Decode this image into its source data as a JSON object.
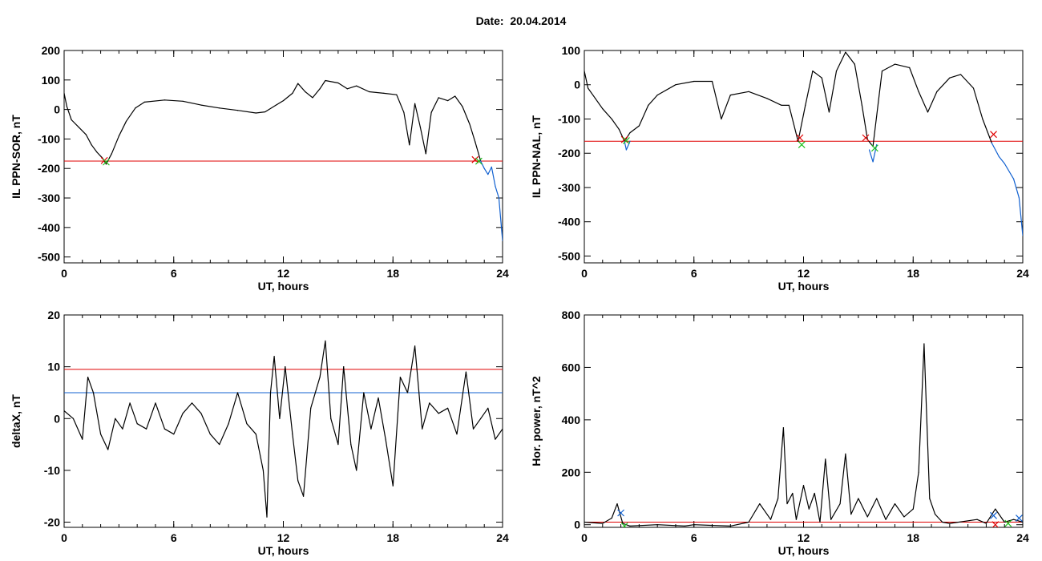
{
  "header": {
    "date_label": "Date:",
    "date_value": "20.04.2014"
  },
  "colors": {
    "trace": "#000000",
    "threshold_red": "#e00000",
    "threshold_blue": "#1060d0",
    "marker_green": "#20c020",
    "marker_red": "#e00000",
    "marker_blue": "#1060d0"
  },
  "chart_data": [
    {
      "id": "il-ppn-sor",
      "type": "line",
      "xlabel": "UT, hours",
      "ylabel": "IL PPN-SOR, nT",
      "xlim": [
        0,
        24
      ],
      "ylim": [
        -520,
        200
      ],
      "xticks": [
        0,
        6,
        12,
        18,
        24
      ],
      "yticks": [
        200,
        100,
        0,
        -100,
        -200,
        -300,
        -400,
        -500
      ],
      "thresholds": [
        {
          "y": -175,
          "color": "red"
        }
      ],
      "series": [
        {
          "color": "black",
          "points": [
            [
              0,
              55
            ],
            [
              0.15,
              10
            ],
            [
              0.4,
              -35
            ],
            [
              0.8,
              -60
            ],
            [
              1.2,
              -85
            ],
            [
              1.5,
              -120
            ],
            [
              1.8,
              -145
            ],
            [
              2.1,
              -165
            ],
            [
              2.3,
              -185
            ],
            [
              2.6,
              -150
            ],
            [
              3.0,
              -90
            ],
            [
              3.4,
              -40
            ],
            [
              3.9,
              5
            ],
            [
              4.4,
              25
            ],
            [
              5.5,
              32
            ],
            [
              6.5,
              28
            ],
            [
              7.5,
              15
            ],
            [
              8.5,
              5
            ],
            [
              9.5,
              -3
            ],
            [
              10.5,
              -12
            ],
            [
              11.0,
              -8
            ],
            [
              11.6,
              15
            ],
            [
              12.0,
              30
            ],
            [
              12.5,
              55
            ],
            [
              12.8,
              88
            ],
            [
              13.2,
              60
            ],
            [
              13.6,
              40
            ],
            [
              14.0,
              70
            ],
            [
              14.3,
              98
            ],
            [
              15.0,
              90
            ],
            [
              15.5,
              70
            ],
            [
              16.0,
              80
            ],
            [
              16.7,
              60
            ],
            [
              17.5,
              55
            ],
            [
              18.2,
              50
            ],
            [
              18.6,
              -10
            ],
            [
              18.9,
              -120
            ],
            [
              19.2,
              20
            ],
            [
              19.5,
              -60
            ],
            [
              19.8,
              -150
            ],
            [
              20.1,
              -10
            ],
            [
              20.5,
              40
            ],
            [
              21.0,
              30
            ],
            [
              21.4,
              45
            ],
            [
              21.8,
              10
            ],
            [
              22.2,
              -50
            ],
            [
              22.5,
              -110
            ],
            [
              22.8,
              -175
            ]
          ]
        },
        {
          "color": "blue",
          "points": [
            [
              22.8,
              -175
            ],
            [
              23.0,
              -200
            ],
            [
              23.2,
              -220
            ],
            [
              23.4,
              -195
            ],
            [
              23.6,
              -260
            ],
            [
              23.8,
              -300
            ],
            [
              24.0,
              -445
            ]
          ]
        }
      ],
      "markers": [
        {
          "x": 2.2,
          "y": -173,
          "color": "red"
        },
        {
          "x": 2.3,
          "y": -178,
          "color": "green"
        },
        {
          "x": 22.5,
          "y": -170,
          "color": "red"
        },
        {
          "x": 22.7,
          "y": -175,
          "color": "green"
        }
      ]
    },
    {
      "id": "il-ppn-nal",
      "type": "line",
      "xlabel": "UT, hours",
      "ylabel": "IL PPN-NAL, nT",
      "xlim": [
        0,
        24
      ],
      "ylim": [
        -520,
        100
      ],
      "xticks": [
        0,
        6,
        12,
        18,
        24
      ],
      "yticks": [
        100,
        0,
        -100,
        -200,
        -300,
        -400,
        -500
      ],
      "thresholds": [
        {
          "y": -165,
          "color": "red"
        }
      ],
      "series": [
        {
          "color": "black",
          "points": [
            [
              0,
              40
            ],
            [
              0.2,
              -10
            ],
            [
              0.6,
              -40
            ],
            [
              1.0,
              -70
            ],
            [
              1.5,
              -100
            ],
            [
              1.9,
              -130
            ],
            [
              2.2,
              -165
            ],
            [
              2.5,
              -140
            ],
            [
              3.0,
              -120
            ],
            [
              3.5,
              -60
            ],
            [
              4.0,
              -30
            ],
            [
              5.0,
              0
            ],
            [
              6.0,
              10
            ],
            [
              7.0,
              10
            ],
            [
              7.5,
              -100
            ],
            [
              8.0,
              -30
            ],
            [
              9.0,
              -20
            ],
            [
              10.0,
              -40
            ],
            [
              10.8,
              -60
            ],
            [
              11.2,
              -60
            ],
            [
              11.7,
              -165
            ],
            [
              12.1,
              -60
            ],
            [
              12.5,
              40
            ],
            [
              13.0,
              20
            ],
            [
              13.4,
              -80
            ],
            [
              13.8,
              40
            ],
            [
              14.3,
              95
            ],
            [
              14.8,
              60
            ],
            [
              15.2,
              -60
            ],
            [
              15.5,
              -160
            ],
            [
              15.8,
              -180
            ],
            [
              16.3,
              40
            ],
            [
              17.0,
              60
            ],
            [
              17.8,
              50
            ],
            [
              18.3,
              -20
            ],
            [
              18.8,
              -80
            ],
            [
              19.3,
              -20
            ],
            [
              20.0,
              20
            ],
            [
              20.6,
              30
            ],
            [
              21.3,
              -10
            ],
            [
              21.8,
              -100
            ],
            [
              22.3,
              -170
            ]
          ]
        },
        {
          "color": "blue",
          "points": [
            [
              2.2,
              -165
            ],
            [
              2.3,
              -190
            ],
            [
              2.5,
              -165
            ]
          ]
        },
        {
          "color": "blue",
          "points": [
            [
              15.6,
              -190
            ],
            [
              15.8,
              -225
            ],
            [
              16.0,
              -175
            ]
          ]
        },
        {
          "color": "blue",
          "points": [
            [
              22.3,
              -170
            ],
            [
              22.7,
              -210
            ],
            [
              23.0,
              -230
            ],
            [
              23.5,
              -275
            ],
            [
              23.8,
              -330
            ],
            [
              24.0,
              -440
            ]
          ]
        }
      ],
      "markers": [
        {
          "x": 2.2,
          "y": -160,
          "color": "red"
        },
        {
          "x": 2.3,
          "y": -163,
          "color": "green"
        },
        {
          "x": 11.8,
          "y": -155,
          "color": "red"
        },
        {
          "x": 11.9,
          "y": -175,
          "color": "green"
        },
        {
          "x": 15.4,
          "y": -155,
          "color": "red"
        },
        {
          "x": 15.9,
          "y": -185,
          "color": "green"
        },
        {
          "x": 22.4,
          "y": -145,
          "color": "red"
        }
      ]
    },
    {
      "id": "deltax",
      "type": "line",
      "xlabel": "UT, hours",
      "ylabel": "deltaX, nT",
      "xlim": [
        0,
        24
      ],
      "ylim": [
        -21,
        20
      ],
      "xticks": [
        0,
        6,
        12,
        18,
        24
      ],
      "yticks": [
        20,
        10,
        0,
        -10,
        -20
      ],
      "thresholds": [
        {
          "y": 9.5,
          "color": "red"
        },
        {
          "y": 5,
          "color": "blue"
        }
      ],
      "series": [
        {
          "color": "black",
          "points": [
            [
              0,
              1.5
            ],
            [
              0.5,
              0
            ],
            [
              1.0,
              -4
            ],
            [
              1.3,
              8
            ],
            [
              1.6,
              5
            ],
            [
              2.0,
              -3
            ],
            [
              2.4,
              -6
            ],
            [
              2.8,
              0
            ],
            [
              3.2,
              -2
            ],
            [
              3.6,
              3
            ],
            [
              4.0,
              -1
            ],
            [
              4.5,
              -2
            ],
            [
              5.0,
              3
            ],
            [
              5.5,
              -2
            ],
            [
              6.0,
              -3
            ],
            [
              6.5,
              1
            ],
            [
              7.0,
              3
            ],
            [
              7.5,
              1
            ],
            [
              8.0,
              -3
            ],
            [
              8.5,
              -5
            ],
            [
              9.0,
              -1
            ],
            [
              9.5,
              5
            ],
            [
              10.0,
              -1
            ],
            [
              10.5,
              -3
            ],
            [
              10.9,
              -10
            ],
            [
              11.1,
              -19
            ],
            [
              11.3,
              5
            ],
            [
              11.5,
              12
            ],
            [
              11.8,
              0
            ],
            [
              12.1,
              10
            ],
            [
              12.5,
              -3
            ],
            [
              12.8,
              -12
            ],
            [
              13.1,
              -15
            ],
            [
              13.5,
              2
            ],
            [
              14.0,
              8
            ],
            [
              14.3,
              15
            ],
            [
              14.6,
              0
            ],
            [
              15.0,
              -5
            ],
            [
              15.3,
              10
            ],
            [
              15.7,
              -5
            ],
            [
              16.0,
              -10
            ],
            [
              16.4,
              5
            ],
            [
              16.8,
              -2
            ],
            [
              17.2,
              4
            ],
            [
              17.6,
              -4
            ],
            [
              18.0,
              -13
            ],
            [
              18.4,
              8
            ],
            [
              18.8,
              5
            ],
            [
              19.2,
              14
            ],
            [
              19.6,
              -2
            ],
            [
              20.0,
              3
            ],
            [
              20.5,
              1
            ],
            [
              21.0,
              2
            ],
            [
              21.5,
              -3
            ],
            [
              22.0,
              9
            ],
            [
              22.4,
              -2
            ],
            [
              22.8,
              0
            ],
            [
              23.2,
              2
            ],
            [
              23.6,
              -4
            ],
            [
              24.0,
              -2
            ]
          ]
        }
      ],
      "markers": []
    },
    {
      "id": "hor-power",
      "type": "line",
      "xlabel": "UT, hours",
      "ylabel": "Hor. power, nT^2",
      "xlim": [
        0,
        24
      ],
      "ylim": [
        -10,
        800
      ],
      "xticks": [
        0,
        6,
        12,
        18,
        24
      ],
      "yticks": [
        800,
        600,
        400,
        200,
        0
      ],
      "thresholds": [
        {
          "y": 10,
          "color": "red"
        }
      ],
      "series": [
        {
          "color": "black",
          "points": [
            [
              0,
              10
            ],
            [
              1.0,
              5
            ],
            [
              1.5,
              25
            ],
            [
              1.8,
              80
            ],
            [
              2.1,
              5
            ],
            [
              2.5,
              -5
            ],
            [
              4.0,
              0
            ],
            [
              5.5,
              -5
            ],
            [
              6.0,
              0
            ],
            [
              8.0,
              -5
            ],
            [
              9.0,
              10
            ],
            [
              9.6,
              80
            ],
            [
              10.2,
              20
            ],
            [
              10.6,
              100
            ],
            [
              10.9,
              370
            ],
            [
              11.1,
              80
            ],
            [
              11.4,
              120
            ],
            [
              11.6,
              20
            ],
            [
              12.0,
              150
            ],
            [
              12.3,
              60
            ],
            [
              12.6,
              120
            ],
            [
              12.9,
              10
            ],
            [
              13.2,
              250
            ],
            [
              13.5,
              20
            ],
            [
              14.0,
              80
            ],
            [
              14.3,
              270
            ],
            [
              14.6,
              40
            ],
            [
              15.0,
              100
            ],
            [
              15.5,
              30
            ],
            [
              16.0,
              100
            ],
            [
              16.5,
              20
            ],
            [
              17.0,
              80
            ],
            [
              17.5,
              30
            ],
            [
              18.0,
              60
            ],
            [
              18.3,
              200
            ],
            [
              18.6,
              690
            ],
            [
              18.9,
              100
            ],
            [
              19.2,
              40
            ],
            [
              19.6,
              10
            ],
            [
              20.0,
              5
            ],
            [
              21.5,
              20
            ],
            [
              22.0,
              5
            ],
            [
              22.5,
              60
            ],
            [
              23.0,
              10
            ],
            [
              23.5,
              20
            ],
            [
              24.0,
              10
            ]
          ]
        }
      ],
      "markers": [
        {
          "x": 2.0,
          "y": 45,
          "color": "blue"
        },
        {
          "x": 2.2,
          "y": -5,
          "color": "green"
        },
        {
          "x": 22.4,
          "y": 35,
          "color": "blue"
        },
        {
          "x": 22.5,
          "y": 0,
          "color": "red"
        },
        {
          "x": 23.2,
          "y": 5,
          "color": "green"
        },
        {
          "x": 23.8,
          "y": 25,
          "color": "blue"
        }
      ]
    }
  ]
}
